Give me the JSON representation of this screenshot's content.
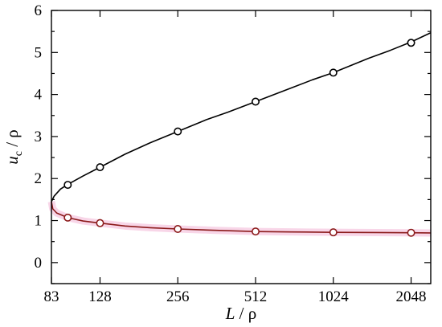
{
  "chart_data": {
    "type": "line",
    "xlabel": {
      "var": "L",
      "sep": " / ",
      "unit": "ρ"
    },
    "ylabel": {
      "var": "u",
      "sub": "c",
      "sep": " / ",
      "unit": "ρ"
    },
    "xscale": "log2",
    "xlim": [
      83,
      2440
    ],
    "ylim": [
      -0.5,
      6
    ],
    "xticks": [
      83,
      128,
      256,
      512,
      1024,
      2048
    ],
    "yticks": [
      0,
      1,
      2,
      3,
      4,
      5,
      6
    ],
    "grid": false,
    "legend": "none",
    "series": [
      {
        "role": "upper-branch",
        "color": "#000000",
        "curve": [
          [
            83,
            1.45
          ],
          [
            85,
            1.58
          ],
          [
            90,
            1.75
          ],
          [
            96,
            1.86
          ],
          [
            110,
            2.06
          ],
          [
            128,
            2.27
          ],
          [
            160,
            2.58
          ],
          [
            200,
            2.85
          ],
          [
            256,
            3.12
          ],
          [
            330,
            3.4
          ],
          [
            400,
            3.58
          ],
          [
            512,
            3.83
          ],
          [
            700,
            4.15
          ],
          [
            850,
            4.35
          ],
          [
            1024,
            4.52
          ],
          [
            1400,
            4.86
          ],
          [
            1700,
            5.05
          ],
          [
            2048,
            5.25
          ],
          [
            2440,
            5.47
          ]
        ],
        "markers": {
          "x": [
            96,
            128,
            256,
            512,
            1024,
            2048
          ],
          "y": [
            1.85,
            2.27,
            3.12,
            3.83,
            4.52,
            5.23
          ]
        }
      },
      {
        "role": "lower-branch",
        "color": "#8b1a1a",
        "band_color": "#f8d6e8",
        "curve": [
          [
            83,
            1.45
          ],
          [
            84,
            1.28
          ],
          [
            87,
            1.18
          ],
          [
            96,
            1.07
          ],
          [
            110,
            0.99
          ],
          [
            128,
            0.94
          ],
          [
            160,
            0.87
          ],
          [
            200,
            0.83
          ],
          [
            256,
            0.8
          ],
          [
            350,
            0.77
          ],
          [
            512,
            0.74
          ],
          [
            700,
            0.73
          ],
          [
            1024,
            0.72
          ],
          [
            1500,
            0.715
          ],
          [
            2048,
            0.71
          ],
          [
            2440,
            0.705
          ]
        ],
        "markers": {
          "x": [
            96,
            128,
            256,
            512,
            1024,
            2048
          ],
          "y": [
            1.07,
            0.94,
            0.8,
            0.74,
            0.72,
            0.71
          ]
        }
      }
    ]
  }
}
